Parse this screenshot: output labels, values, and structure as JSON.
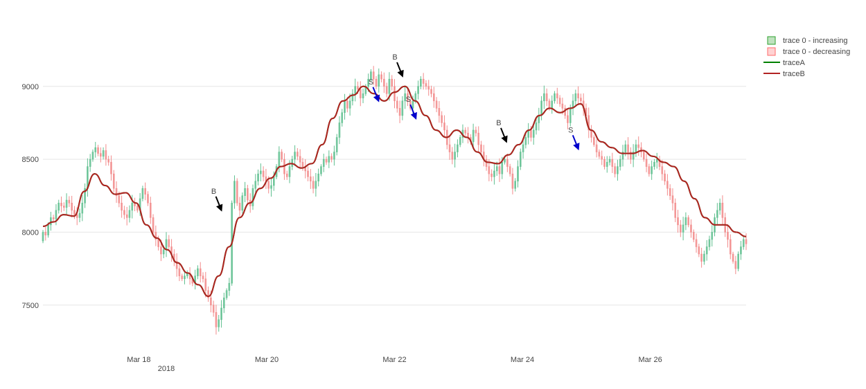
{
  "chart_data": {
    "type": "candlestick",
    "x_axis": {
      "ticks": [
        "Mar 18",
        "Mar 20",
        "Mar 22",
        "Mar 24",
        "Mar 26"
      ],
      "year_label": "2018",
      "range": [
        "2018-03-16 12:00",
        "2018-03-27 12:00"
      ]
    },
    "y_axis": {
      "ticks": [
        7500,
        8000,
        8500,
        9000
      ],
      "range": [
        7290,
        9260
      ]
    },
    "grid": "horizontal",
    "legend": {
      "position": "top-right",
      "entries": [
        {
          "label": "trace 0 - increasing",
          "color": "#2ca02c"
        },
        {
          "label": "trace 0 - decreasing",
          "color": "#ff6b6b"
        },
        {
          "label": "traceA",
          "color": "#008000"
        },
        {
          "label": "traceB",
          "color": "#b22222"
        }
      ]
    },
    "colors": {
      "increasing": "#5fbf8f",
      "decreasing": "#f28b8b",
      "traceA": "#008000",
      "traceB": "#b22222"
    },
    "candles": {
      "x_start": "2018-03-16 12:00",
      "x_end": "2018-03-27 12:00",
      "close": [
        8000,
        7980,
        8050,
        8100,
        8090,
        8150,
        8200,
        8180,
        8170,
        8220,
        8200,
        8150,
        8120,
        8100,
        8130,
        8200,
        8300,
        8450,
        8500,
        8550,
        8580,
        8540,
        8520,
        8560,
        8500,
        8480,
        8400,
        8300,
        8250,
        8200,
        8150,
        8120,
        8100,
        8150,
        8200,
        8180,
        8150,
        8230,
        8300,
        8260,
        8200,
        8100,
        8000,
        7950,
        7900,
        7850,
        7880,
        7950,
        7900,
        7850,
        7800,
        7750,
        7700,
        7680,
        7700,
        7720,
        7680,
        7650,
        7700,
        7750,
        7700,
        7680,
        7600,
        7550,
        7500,
        7450,
        7350,
        7400,
        7480,
        7550,
        7600,
        7650,
        8200,
        8350,
        8200,
        8150,
        8250,
        8300,
        8220,
        8180,
        8300,
        8350,
        8400,
        8420,
        8380,
        8350,
        8300,
        8320,
        8380,
        8450,
        8550,
        8500,
        8400,
        8380,
        8450,
        8500,
        8550,
        8520,
        8480,
        8450,
        8420,
        8380,
        8350,
        8300,
        8350,
        8400,
        8450,
        8500,
        8480,
        8520,
        8500,
        8550,
        8650,
        8750,
        8820,
        8900,
        8850,
        8900,
        8950,
        9000,
        8980,
        8920,
        8950,
        9000,
        9050,
        9100,
        9050,
        9000,
        9080,
        9050,
        9000,
        8950,
        9050,
        9000,
        8900,
        8850,
        8800,
        8900,
        8950,
        8900,
        8850,
        8900,
        8950,
        9000,
        9050,
        9020,
        9000,
        8980,
        8950,
        8900,
        8850,
        8800,
        8750,
        8700,
        8600,
        8550,
        8500,
        8550,
        8600,
        8650,
        8700,
        8680,
        8650,
        8620,
        8700,
        8680,
        8600,
        8550,
        8500,
        8450,
        8400,
        8380,
        8420,
        8450,
        8400,
        8480,
        8500,
        8450,
        8400,
        8300,
        8350,
        8450,
        8550,
        8600,
        8650,
        8700,
        8650,
        8700,
        8750,
        8800,
        8900,
        8950,
        8900,
        8850,
        8900,
        8950,
        8920,
        8880,
        8850,
        8800,
        8750,
        8850,
        8900,
        8950,
        8920,
        8900,
        8850,
        8800,
        8700,
        8650,
        8600,
        8550,
        8520,
        8500,
        8450,
        8480,
        8500,
        8450,
        8400,
        8450,
        8500,
        8550,
        8600,
        8550,
        8500,
        8550,
        8600,
        8580,
        8550,
        8500,
        8450,
        8400,
        8450,
        8480,
        8500,
        8450,
        8400,
        8350,
        8300,
        8250,
        8200,
        8100,
        8050,
        8000,
        8050,
        8100,
        8050,
        8000,
        7950,
        7900,
        7850,
        7800,
        7850,
        7900,
        7950,
        8000,
        8100,
        8150,
        8200,
        8100,
        8000,
        7950,
        7850,
        7800,
        7750,
        7850,
        7900,
        7950,
        7920
      ]
    },
    "traceA": [
      8040,
      8070,
      8120,
      8110,
      8280,
      8400,
      8320,
      8260,
      8270,
      8200,
      8050,
      7960,
      7880,
      7790,
      7720,
      7640,
      7560,
      7700,
      7900,
      8100,
      8200,
      8300,
      8370,
      8450,
      8470,
      8440,
      8470,
      8600,
      8780,
      8900,
      8940,
      9000,
      8950,
      8900,
      8960,
      9000,
      8900,
      8800,
      8700,
      8650,
      8700,
      8650,
      8550,
      8480,
      8470,
      8530,
      8600,
      8700,
      8800,
      8850,
      8820,
      8850,
      8880,
      8700,
      8620,
      8580,
      8540,
      8540,
      8560,
      8520,
      8480,
      8450,
      8350,
      8230,
      8100,
      8050,
      8050,
      8000,
      7970
    ],
    "traceB": [
      8040,
      8070,
      8120,
      8110,
      8280,
      8400,
      8320,
      8260,
      8270,
      8200,
      8050,
      7960,
      7880,
      7790,
      7720,
      7640,
      7560,
      7700,
      7900,
      8100,
      8200,
      8300,
      8370,
      8450,
      8470,
      8440,
      8470,
      8600,
      8780,
      8900,
      8940,
      9000,
      8950,
      8900,
      8960,
      9000,
      8900,
      8800,
      8700,
      8650,
      8700,
      8650,
      8550,
      8480,
      8470,
      8530,
      8600,
      8700,
      8800,
      8850,
      8820,
      8850,
      8880,
      8700,
      8620,
      8580,
      8540,
      8540,
      8560,
      8520,
      8480,
      8450,
      8350,
      8230,
      8100,
      8050,
      8050,
      8000,
      7970
    ],
    "annotations": [
      {
        "text": "B",
        "x": "2018-03-19 07:00",
        "y": 8150,
        "color": "#000000"
      },
      {
        "text": "S",
        "x": "2018-03-21 18:00",
        "y": 8900,
        "color": "#0000cc"
      },
      {
        "text": "B",
        "x": "2018-03-22 03:00",
        "y": 9070,
        "color": "#000000"
      },
      {
        "text": "S",
        "x": "2018-03-22 08:00",
        "y": 8780,
        "color": "#0000cc"
      },
      {
        "text": "B",
        "x": "2018-03-23 18:00",
        "y": 8620,
        "color": "#000000"
      },
      {
        "text": "S",
        "x": "2018-03-24 21:00",
        "y": 8570,
        "color": "#0000cc"
      }
    ]
  }
}
